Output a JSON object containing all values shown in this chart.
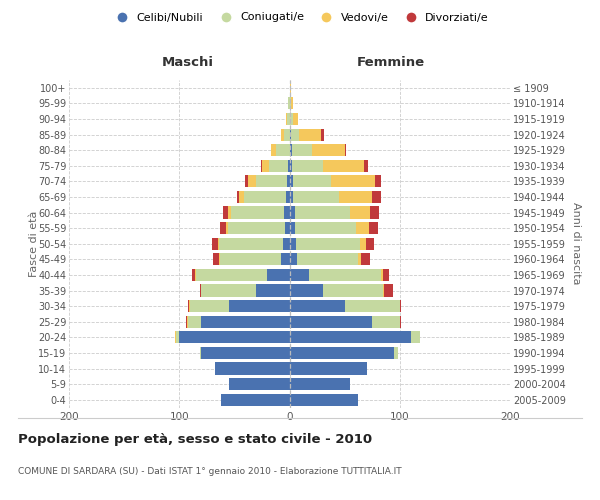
{
  "age_groups": [
    "0-4",
    "5-9",
    "10-14",
    "15-19",
    "20-24",
    "25-29",
    "30-34",
    "35-39",
    "40-44",
    "45-49",
    "50-54",
    "55-59",
    "60-64",
    "65-69",
    "70-74",
    "75-79",
    "80-84",
    "85-89",
    "90-94",
    "95-99",
    "100+"
  ],
  "birth_years": [
    "2005-2009",
    "2000-2004",
    "1995-1999",
    "1990-1994",
    "1985-1989",
    "1980-1984",
    "1975-1979",
    "1970-1974",
    "1965-1969",
    "1960-1964",
    "1955-1959",
    "1950-1954",
    "1945-1949",
    "1940-1944",
    "1935-1939",
    "1930-1934",
    "1925-1929",
    "1920-1924",
    "1915-1919",
    "1910-1914",
    "≤ 1909"
  ],
  "male_celibi": [
    62,
    55,
    68,
    80,
    100,
    80,
    55,
    30,
    20,
    8,
    6,
    4,
    5,
    3,
    2,
    1,
    0,
    0,
    0,
    0,
    0
  ],
  "male_coniugati": [
    0,
    0,
    0,
    1,
    3,
    12,
    35,
    50,
    65,
    55,
    58,
    52,
    48,
    38,
    28,
    18,
    12,
    5,
    2,
    1,
    0
  ],
  "male_vedovi": [
    0,
    0,
    0,
    0,
    1,
    1,
    1,
    0,
    1,
    1,
    1,
    2,
    3,
    5,
    8,
    6,
    5,
    3,
    1,
    0,
    0
  ],
  "male_divorziati": [
    0,
    0,
    0,
    0,
    0,
    1,
    1,
    1,
    2,
    5,
    5,
    5,
    4,
    2,
    2,
    1,
    0,
    0,
    0,
    0,
    0
  ],
  "female_nubili": [
    62,
    55,
    70,
    95,
    110,
    75,
    50,
    30,
    18,
    7,
    6,
    5,
    5,
    3,
    3,
    2,
    2,
    1,
    0,
    0,
    0
  ],
  "female_coniugate": [
    0,
    0,
    0,
    3,
    8,
    25,
    50,
    55,
    65,
    55,
    58,
    55,
    50,
    42,
    35,
    28,
    18,
    8,
    3,
    1,
    0
  ],
  "female_vedove": [
    0,
    0,
    0,
    0,
    0,
    0,
    0,
    1,
    2,
    3,
    5,
    12,
    18,
    30,
    40,
    38,
    30,
    20,
    5,
    2,
    1
  ],
  "female_divorziate": [
    0,
    0,
    0,
    0,
    0,
    1,
    1,
    8,
    5,
    8,
    8,
    8,
    8,
    8,
    5,
    3,
    1,
    2,
    0,
    0,
    0
  ],
  "col_blue": "#4a72b0",
  "col_green": "#c5d9a0",
  "col_yellow": "#f5c85c",
  "col_red": "#c0393b",
  "legend_labels": [
    "Celibi/Nubili",
    "Coniugati/e",
    "Vedovi/e",
    "Divorziati/e"
  ],
  "title": "Popolazione per età, sesso e stato civile - 2010",
  "subtitle": "COMUNE DI SARDARA (SU) - Dati ISTAT 1° gennaio 2010 - Elaborazione TUTTITALIA.IT",
  "maschi_label": "Maschi",
  "femmine_label": "Femmine",
  "ylabel_left": "Fasce di età",
  "ylabel_right": "Anni di nascita",
  "xlim": 200,
  "bg_color": "#ffffff"
}
